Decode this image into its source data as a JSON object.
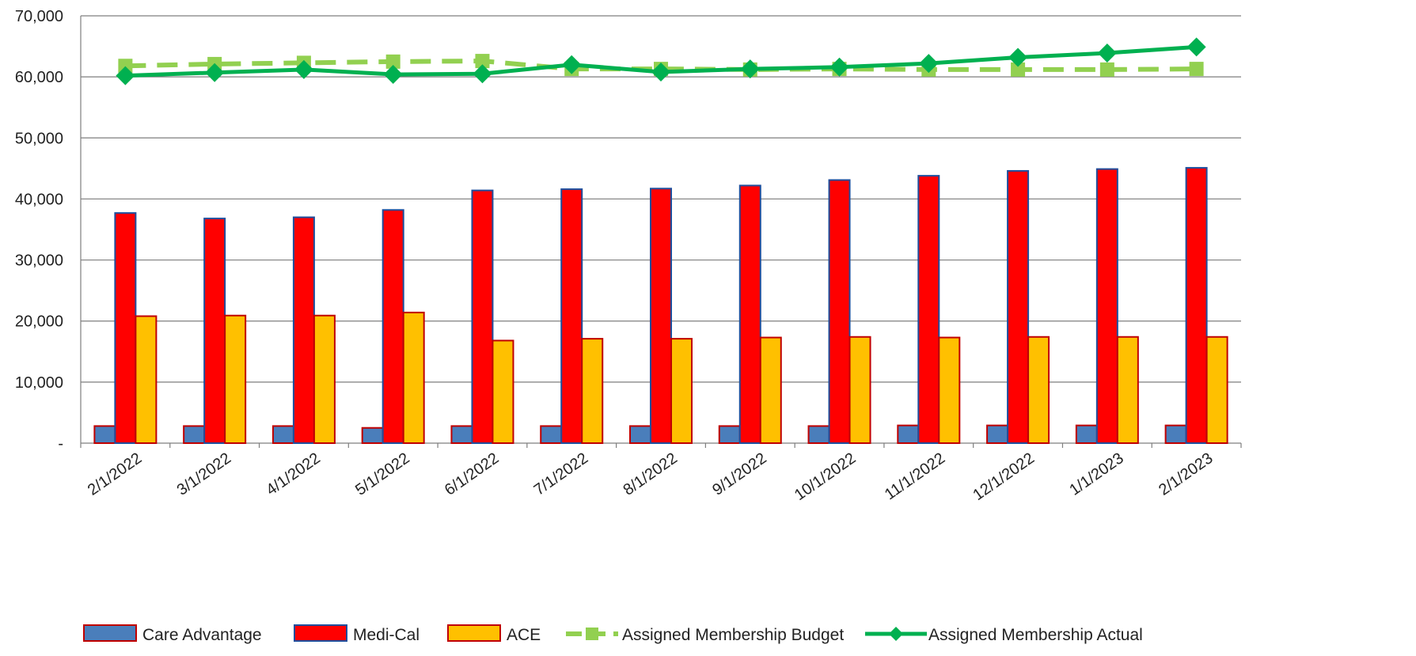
{
  "chart_data": {
    "type": "bar",
    "categories": [
      "2/1/2022",
      "3/1/2022",
      "4/1/2022",
      "5/1/2022",
      "6/1/2022",
      "7/1/2022",
      "8/1/2022",
      "9/1/2022",
      "10/1/2022",
      "11/1/2022",
      "12/1/2022",
      "1/1/2023",
      "2/1/2023"
    ],
    "series": [
      {
        "name": "Care Advantage",
        "kind": "bar",
        "color": "#4a7ebb",
        "border": "#c00000",
        "values": [
          2800,
          2800,
          2800,
          2500,
          2800,
          2800,
          2800,
          2800,
          2800,
          2900,
          2900,
          2900,
          2900
        ]
      },
      {
        "name": "Medi-Cal",
        "kind": "bar",
        "color": "#ff0000",
        "border": "#1f4e9c",
        "values": [
          37700,
          36800,
          37000,
          38200,
          41400,
          41600,
          41700,
          42200,
          43100,
          43800,
          44600,
          44900,
          45100
        ]
      },
      {
        "name": "ACE",
        "kind": "bar",
        "color": "#ffc000",
        "border": "#c00000",
        "values": [
          20800,
          20900,
          20900,
          21400,
          16800,
          17100,
          17100,
          17300,
          17400,
          17300,
          17400,
          17400,
          17400
        ]
      },
      {
        "name": "Assigned Membership Budget",
        "kind": "line",
        "style": "dashed",
        "marker": "square",
        "color": "#92d050",
        "values": [
          61800,
          62100,
          62300,
          62500,
          62600,
          61300,
          61300,
          61200,
          61300,
          61200,
          61200,
          61200,
          61300
        ]
      },
      {
        "name": "Assigned Membership Actual",
        "kind": "line",
        "style": "solid",
        "marker": "diamond",
        "color": "#00b050",
        "values": [
          60200,
          60700,
          61200,
          60400,
          60500,
          62000,
          60800,
          61300,
          61600,
          62200,
          63200,
          63900,
          64900
        ]
      }
    ],
    "y_ticks": [
      "-",
      "10,000",
      "20,000",
      "30,000",
      "40,000",
      "50,000",
      "60,000",
      "70,000"
    ],
    "ylim": [
      0,
      70000
    ],
    "grid": true,
    "legend": "bottom"
  }
}
